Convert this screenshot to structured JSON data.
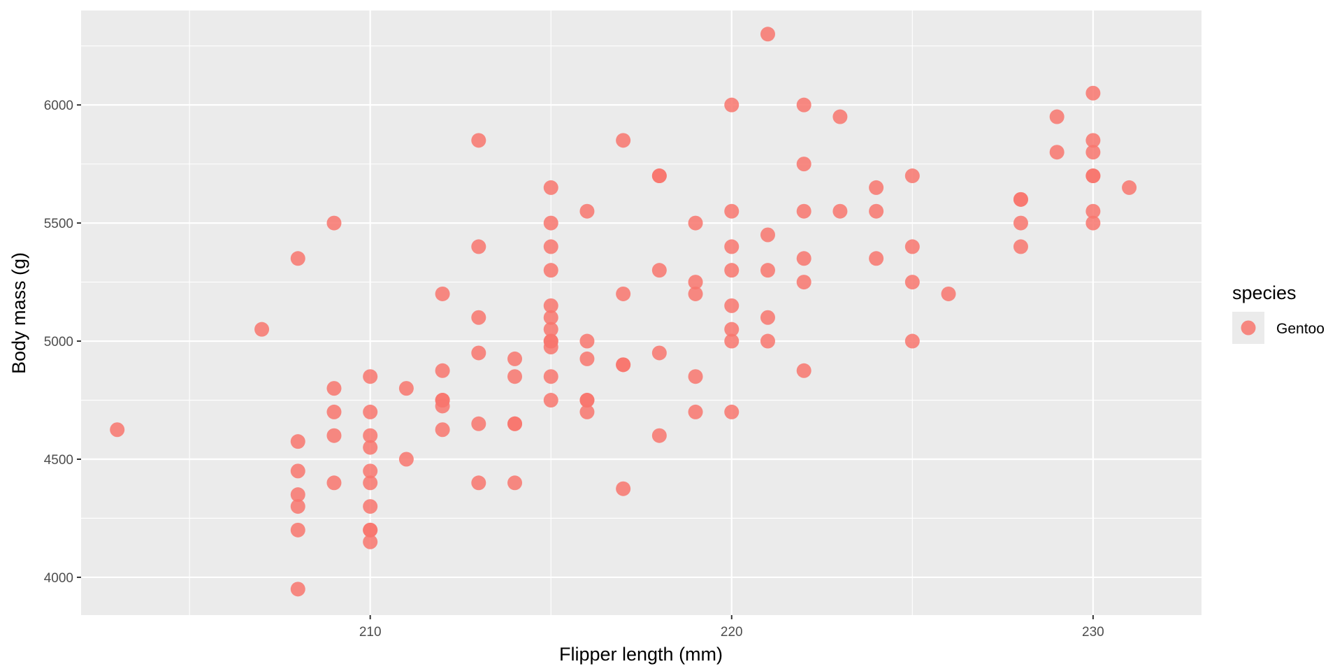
{
  "chart_data": {
    "type": "scatter",
    "title": "",
    "xlabel": "Flipper length (mm)",
    "ylabel": "Body mass (g)",
    "xlim": [
      202,
      233
    ],
    "ylim": [
      3840,
      6400
    ],
    "x_ticks": [
      210,
      220,
      230
    ],
    "x_tick_labels": [
      "210",
      "220",
      "230"
    ],
    "y_ticks": [
      4000,
      4500,
      5000,
      5500,
      6000
    ],
    "y_tick_labels": [
      "4000",
      "4500",
      "5000",
      "5500",
      "6000"
    ],
    "grid": true,
    "legend": {
      "title": "species",
      "position": "right"
    },
    "series": [
      {
        "name": "Gentoo",
        "color": "#F8766D",
        "points": [
          [
            203,
            4625
          ],
          [
            207,
            5050
          ],
          [
            208,
            5350
          ],
          [
            208,
            4575
          ],
          [
            208,
            4450
          ],
          [
            208,
            4350
          ],
          [
            208,
            4300
          ],
          [
            208,
            4200
          ],
          [
            208,
            3950
          ],
          [
            209,
            5500
          ],
          [
            209,
            4800
          ],
          [
            209,
            4700
          ],
          [
            209,
            4600
          ],
          [
            209,
            4400
          ],
          [
            210,
            4850
          ],
          [
            210,
            4700
          ],
          [
            210,
            4600
          ],
          [
            210,
            4550
          ],
          [
            210,
            4450
          ],
          [
            210,
            4400
          ],
          [
            210,
            4300
          ],
          [
            210,
            4200
          ],
          [
            210,
            4200
          ],
          [
            210,
            4150
          ],
          [
            211,
            4800
          ],
          [
            211,
            4500
          ],
          [
            212,
            5200
          ],
          [
            212,
            4875
          ],
          [
            212,
            4750
          ],
          [
            212,
            4750
          ],
          [
            212,
            4725
          ],
          [
            212,
            4625
          ],
          [
            213,
            5850
          ],
          [
            213,
            5400
          ],
          [
            213,
            5100
          ],
          [
            213,
            4950
          ],
          [
            213,
            4650
          ],
          [
            213,
            4400
          ],
          [
            214,
            4925
          ],
          [
            214,
            4850
          ],
          [
            214,
            4650
          ],
          [
            214,
            4650
          ],
          [
            214,
            4400
          ],
          [
            215,
            5650
          ],
          [
            215,
            5500
          ],
          [
            215,
            5400
          ],
          [
            215,
            5300
          ],
          [
            215,
            5150
          ],
          [
            215,
            5100
          ],
          [
            215,
            5050
          ],
          [
            215,
            5000
          ],
          [
            215,
            5000
          ],
          [
            215,
            4975
          ],
          [
            215,
            4850
          ],
          [
            215,
            4750
          ],
          [
            216,
            5550
          ],
          [
            216,
            5000
          ],
          [
            216,
            4925
          ],
          [
            216,
            4750
          ],
          [
            216,
            4750
          ],
          [
            216,
            4700
          ],
          [
            217,
            5850
          ],
          [
            217,
            5200
          ],
          [
            217,
            4900
          ],
          [
            217,
            4900
          ],
          [
            217,
            4375
          ],
          [
            218,
            5700
          ],
          [
            218,
            5700
          ],
          [
            218,
            5300
          ],
          [
            218,
            4950
          ],
          [
            218,
            4600
          ],
          [
            219,
            5500
          ],
          [
            219,
            5250
          ],
          [
            219,
            5200
          ],
          [
            219,
            4850
          ],
          [
            219,
            4700
          ],
          [
            220,
            6000
          ],
          [
            220,
            5550
          ],
          [
            220,
            5400
          ],
          [
            220,
            5300
          ],
          [
            220,
            5150
          ],
          [
            220,
            5050
          ],
          [
            220,
            5000
          ],
          [
            220,
            4700
          ],
          [
            221,
            6300
          ],
          [
            221,
            5450
          ],
          [
            221,
            5300
          ],
          [
            221,
            5100
          ],
          [
            221,
            5000
          ],
          [
            222,
            6000
          ],
          [
            222,
            5750
          ],
          [
            222,
            5550
          ],
          [
            222,
            5350
          ],
          [
            222,
            5250
          ],
          [
            222,
            4875
          ],
          [
            223,
            5950
          ],
          [
            223,
            5550
          ],
          [
            224,
            5650
          ],
          [
            224,
            5550
          ],
          [
            224,
            5350
          ],
          [
            225,
            5700
          ],
          [
            225,
            5400
          ],
          [
            225,
            5250
          ],
          [
            225,
            5000
          ],
          [
            226,
            5200
          ],
          [
            228,
            5600
          ],
          [
            228,
            5600
          ],
          [
            228,
            5500
          ],
          [
            228,
            5400
          ],
          [
            229,
            5950
          ],
          [
            229,
            5800
          ],
          [
            230,
            6050
          ],
          [
            230,
            5850
          ],
          [
            230,
            5800
          ],
          [
            230,
            5700
          ],
          [
            230,
            5700
          ],
          [
            230,
            5550
          ],
          [
            230,
            5500
          ],
          [
            231,
            5650
          ]
        ]
      }
    ]
  }
}
